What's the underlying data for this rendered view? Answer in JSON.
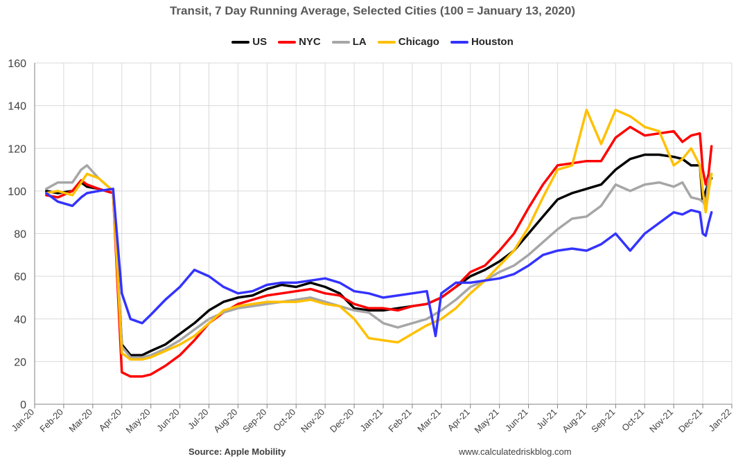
{
  "title": "Transit, 7 Day Running Average, Selected Cities (100 = January 13, 2020)",
  "source_label": "Source: Apple Mobility",
  "website": "www.calculatedriskblog.com",
  "chart_data": {
    "type": "line",
    "title": "Transit, 7 Day Running Average, Selected Cities (100 = January 13, 2020)",
    "xlabel": "",
    "ylabel": "",
    "ylim": [
      0,
      160
    ],
    "yticks": [
      0,
      20,
      40,
      60,
      80,
      100,
      120,
      140,
      160
    ],
    "xticks": [
      "Jan-20",
      "Feb-20",
      "Mar-20",
      "Apr-20",
      "May-20",
      "Jun-20",
      "Jul-20",
      "Aug-20",
      "Sep-20",
      "Oct-20",
      "Nov-20",
      "Dec-20",
      "Jan-21",
      "Feb-21",
      "Mar-21",
      "Apr-21",
      "May-21",
      "Jun-21",
      "Jul-21",
      "Aug-21",
      "Sep-21",
      "Oct-21",
      "Nov-21",
      "Dec-21",
      "Jan-22"
    ],
    "grid": true,
    "legend_position": "top-center",
    "series": [
      {
        "name": "US",
        "color": "#000000",
        "x": [
          0.4,
          0.8,
          1.3,
          1.6,
          1.8,
          2.2,
          2.7,
          3.0,
          3.3,
          3.7,
          4.0,
          4.5,
          5.0,
          5.5,
          6.0,
          6.5,
          7.0,
          7.5,
          8.0,
          8.5,
          9.0,
          9.5,
          10.0,
          10.5,
          11.0,
          11.5,
          12.0,
          12.5,
          13.0,
          13.5,
          14.0,
          14.5,
          15.0,
          15.5,
          16.0,
          16.5,
          17.0,
          17.5,
          18.0,
          18.5,
          19.0,
          19.5,
          20.0,
          20.5,
          21.0,
          21.5,
          22.0,
          22.3,
          22.6,
          22.9,
          23.0,
          23.1,
          23.2,
          23.3
        ],
        "y": [
          100,
          99,
          100,
          104,
          102,
          101,
          99,
          28,
          23,
          23,
          25,
          28,
          33,
          38,
          44,
          48,
          50,
          51,
          54,
          56,
          55,
          57,
          55,
          52,
          45,
          44,
          44,
          45,
          46,
          47,
          50,
          55,
          60,
          63,
          67,
          72,
          80,
          88,
          96,
          99,
          101,
          103,
          110,
          115,
          117,
          117,
          116,
          115,
          112,
          112,
          95,
          100,
          104,
          106
        ]
      },
      {
        "name": "NYC",
        "color": "#ff0000",
        "x": [
          0.4,
          0.8,
          1.3,
          1.6,
          1.8,
          2.2,
          2.7,
          3.0,
          3.3,
          3.7,
          4.0,
          4.5,
          5.0,
          5.5,
          6.0,
          6.5,
          7.0,
          7.5,
          8.0,
          8.5,
          9.0,
          9.5,
          10.0,
          10.5,
          11.0,
          11.5,
          12.0,
          12.5,
          13.0,
          13.5,
          14.0,
          14.5,
          15.0,
          15.5,
          16.0,
          16.5,
          17.0,
          17.5,
          18.0,
          18.5,
          19.0,
          19.5,
          20.0,
          20.5,
          21.0,
          21.5,
          22.0,
          22.3,
          22.6,
          22.9,
          23.0,
          23.1,
          23.2,
          23.3
        ],
        "y": [
          98,
          97,
          100,
          105,
          103,
          101,
          99,
          15,
          13,
          13,
          14,
          18,
          23,
          30,
          38,
          43,
          47,
          49,
          51,
          52,
          53,
          54,
          52,
          51,
          47,
          45,
          45,
          44,
          46,
          47,
          50,
          55,
          62,
          65,
          72,
          80,
          92,
          103,
          112,
          113,
          114,
          114,
          125,
          130,
          126,
          127,
          128,
          123,
          126,
          127,
          110,
          103,
          108,
          121
        ]
      },
      {
        "name": "LA",
        "color": "#a6a6a6",
        "x": [
          0.4,
          0.8,
          1.3,
          1.6,
          1.8,
          2.2,
          2.7,
          3.0,
          3.3,
          3.7,
          4.0,
          4.5,
          5.0,
          5.5,
          6.0,
          6.5,
          7.0,
          7.5,
          8.0,
          8.5,
          9.0,
          9.5,
          10.0,
          10.5,
          11.0,
          11.5,
          12.0,
          12.5,
          13.0,
          13.5,
          14.0,
          14.5,
          15.0,
          15.5,
          16.0,
          16.5,
          17.0,
          17.5,
          18.0,
          18.5,
          19.0,
          19.5,
          20.0,
          20.5,
          21.0,
          21.5,
          22.0,
          22.3,
          22.6,
          22.9,
          23.0,
          23.1,
          23.2,
          23.3
        ],
        "y": [
          101,
          104,
          104,
          110,
          112,
          106,
          100,
          27,
          22,
          22,
          23,
          26,
          30,
          35,
          40,
          43,
          45,
          46,
          47,
          48,
          49,
          50,
          48,
          46,
          44,
          43,
          38,
          36,
          38,
          40,
          44,
          49,
          55,
          58,
          62,
          65,
          70,
          76,
          82,
          87,
          88,
          93,
          103,
          100,
          103,
          104,
          102,
          104,
          97,
          96,
          95,
          93,
          105,
          108
        ]
      },
      {
        "name": "Chicago",
        "color": "#ffc000",
        "x": [
          0.4,
          0.8,
          1.3,
          1.6,
          1.8,
          2.2,
          2.7,
          3.0,
          3.3,
          3.7,
          4.0,
          4.5,
          5.0,
          5.5,
          6.0,
          6.5,
          7.0,
          7.5,
          8.0,
          8.5,
          9.0,
          9.5,
          10.0,
          10.5,
          11.0,
          11.5,
          12.0,
          12.5,
          13.0,
          13.5,
          14.0,
          14.5,
          15.0,
          15.5,
          16.0,
          16.5,
          17.0,
          17.5,
          18.0,
          18.5,
          19.0,
          19.5,
          20.0,
          20.5,
          21.0,
          21.5,
          22.0,
          22.3,
          22.6,
          22.9,
          23.0,
          23.1,
          23.2,
          23.3
        ],
        "y": [
          99,
          100,
          98,
          104,
          108,
          106,
          100,
          24,
          21,
          21,
          22,
          25,
          28,
          32,
          38,
          44,
          46,
          47,
          48,
          48,
          48,
          49,
          47,
          46,
          40,
          31,
          30,
          29,
          33,
          37,
          40,
          45,
          52,
          58,
          65,
          72,
          83,
          97,
          110,
          112,
          138,
          122,
          138,
          135,
          130,
          128,
          112,
          115,
          120,
          112,
          100,
          90,
          100,
          108
        ]
      },
      {
        "name": "Houston",
        "color": "#3333ff",
        "x": [
          0.4,
          0.8,
          1.3,
          1.6,
          1.8,
          2.2,
          2.7,
          3.0,
          3.3,
          3.7,
          4.0,
          4.5,
          5.0,
          5.5,
          6.0,
          6.5,
          7.0,
          7.5,
          8.0,
          8.5,
          9.0,
          9.5,
          10.0,
          10.5,
          11.0,
          11.5,
          12.0,
          12.5,
          13.0,
          13.5,
          13.8,
          14.0,
          14.5,
          15.0,
          15.5,
          16.0,
          16.5,
          17.0,
          17.5,
          18.0,
          18.5,
          19.0,
          19.5,
          20.0,
          20.5,
          21.0,
          21.5,
          22.0,
          22.3,
          22.6,
          22.9,
          23.0,
          23.1,
          23.2,
          23.3
        ],
        "y": [
          99,
          95,
          93,
          97,
          99,
          100,
          101,
          52,
          40,
          38,
          42,
          49,
          55,
          63,
          60,
          55,
          52,
          53,
          56,
          57,
          57,
          58,
          59,
          57,
          53,
          52,
          50,
          51,
          52,
          53,
          32,
          52,
          57,
          57,
          58,
          59,
          61,
          65,
          70,
          72,
          73,
          72,
          75,
          80,
          72,
          80,
          85,
          90,
          89,
          91,
          90,
          80,
          79,
          85,
          90
        ]
      }
    ]
  }
}
